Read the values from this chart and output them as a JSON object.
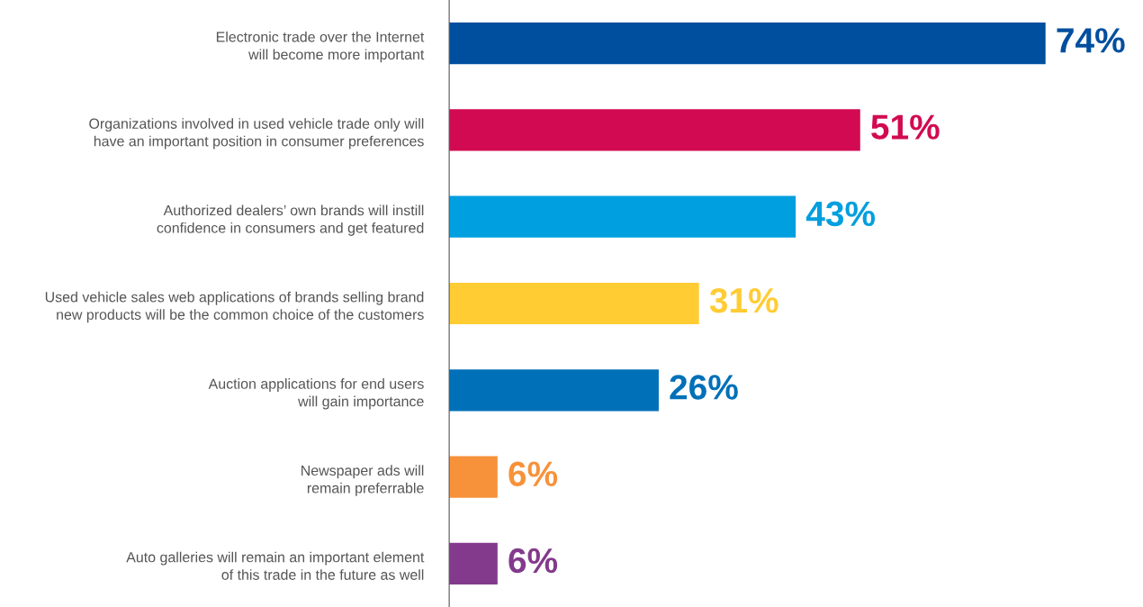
{
  "chart_data": {
    "type": "bar",
    "orientation": "horizontal",
    "value_labels": [
      "74%",
      "51%",
      "43%",
      "31%",
      "26%",
      "6%",
      "6%"
    ],
    "grid": false,
    "legend": false,
    "categories": [
      "Electronic trade over the Internet\nwill become more important",
      "Organizations involved in used vehicle trade only will\nhave an important position in consumer preferences",
      "Authorized dealers’ own brands will instill\nconfidence in consumers and get featured",
      "Used vehicle sales web applications of brands selling brand\nnew products will be the common choice of the customers",
      "Auction applications for end users\nwill gain importance",
      "Newspaper ads will\nremain preferrable",
      "Auto galleries will remain an important element\nof this trade in the future as well"
    ],
    "values": [
      74,
      51,
      43,
      31,
      26,
      6,
      6
    ],
    "colors": [
      "#004f9f",
      "#d20a51",
      "#009fdf",
      "#ffcc33",
      "#0070b8",
      "#f7923a",
      "#833a8c"
    ]
  }
}
